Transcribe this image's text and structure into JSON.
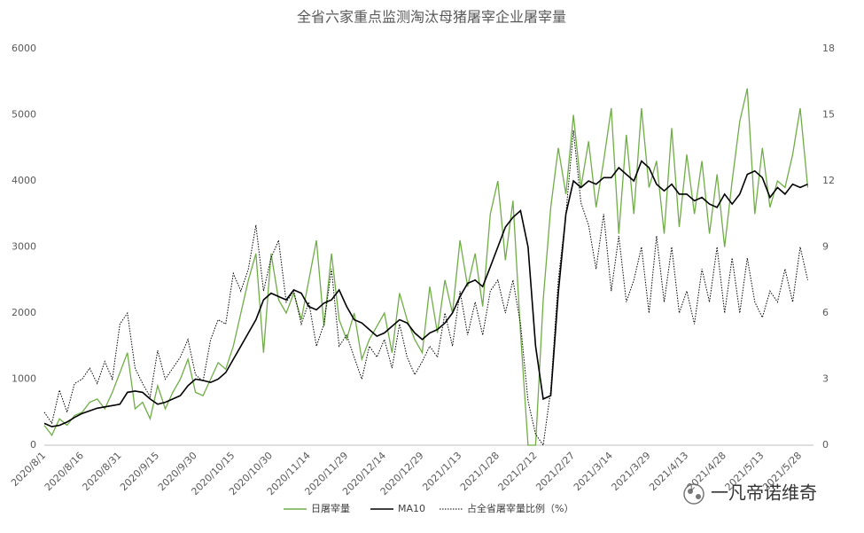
{
  "chart_data": {
    "type": "line",
    "title": "全省六家重点监测淘汰母猪屠宰企业屠宰量",
    "watermark": "一凡帝诺维奇",
    "categories": [
      "2020/8/1",
      null,
      null,
      null,
      null,
      "2020/8/16",
      null,
      null,
      null,
      null,
      "2020/8/31",
      null,
      null,
      null,
      null,
      "2020/9/15",
      null,
      null,
      null,
      null,
      "2020/9/30",
      null,
      null,
      null,
      null,
      "2020/10/15",
      null,
      null,
      null,
      null,
      "2020/10/30",
      null,
      null,
      null,
      null,
      "2020/11/14",
      null,
      null,
      null,
      null,
      "2020/11/29",
      null,
      null,
      null,
      null,
      "2020/12/14",
      null,
      null,
      null,
      null,
      "2020/12/29",
      null,
      null,
      null,
      null,
      "2021/1/13",
      null,
      null,
      null,
      null,
      "2021/1/28",
      null,
      null,
      null,
      null,
      "2021/2/12",
      null,
      null,
      null,
      null,
      "2021/2/27",
      null,
      null,
      null,
      null,
      "2021/3/14",
      null,
      null,
      null,
      null,
      "2021/3/29",
      null,
      null,
      null,
      null,
      "2021/4/13",
      null,
      null,
      null,
      null,
      "2021/4/28",
      null,
      null,
      null,
      null,
      "2021/5/13",
      null,
      null,
      null,
      null,
      "2021/5/28",
      null
    ],
    "series": [
      {
        "name": "日屠宰量",
        "color": "#70ad47",
        "line_style": "solid",
        "values": [
          300,
          150,
          400,
          300,
          450,
          500,
          650,
          700,
          550,
          800,
          1100,
          1400,
          550,
          650,
          400,
          900,
          550,
          800,
          1000,
          1300,
          800,
          750,
          1000,
          1250,
          1150,
          1500,
          2000,
          2500,
          2900,
          1400,
          2900,
          2200,
          2000,
          2300,
          1900,
          2500,
          3100,
          1800,
          2900,
          1900,
          1600,
          2000,
          1300,
          1600,
          1800,
          2000,
          1400,
          2300,
          1900,
          1600,
          1400,
          2400,
          1700,
          2500,
          2000,
          3100,
          2400,
          2900,
          2100,
          3500,
          4000,
          2800,
          3700,
          1700,
          0,
          0,
          2200,
          3600,
          4500,
          3800,
          5000,
          3900,
          4600,
          3600,
          4300,
          5100,
          3200,
          4700,
          3500,
          5100,
          3900,
          4300,
          3200,
          4800,
          3300,
          4400,
          3500,
          4300,
          3200,
          4100,
          3000,
          4000,
          4900,
          5400,
          3500,
          4500,
          3600,
          4000,
          3900,
          4400,
          5100,
          3900
        ]
      },
      {
        "name": "MA10",
        "color": "#000000",
        "line_style": "solid",
        "values": [
          330,
          280,
          300,
          350,
          420,
          480,
          520,
          560,
          580,
          600,
          620,
          800,
          820,
          800,
          700,
          620,
          650,
          700,
          750,
          900,
          1000,
          980,
          950,
          1000,
          1100,
          1300,
          1500,
          1700,
          1900,
          2200,
          2300,
          2250,
          2200,
          2350,
          2300,
          2100,
          2050,
          2150,
          2200,
          2350,
          2100,
          1900,
          1850,
          1750,
          1650,
          1700,
          1800,
          1900,
          1850,
          1700,
          1600,
          1700,
          1750,
          1850,
          2000,
          2250,
          2450,
          2500,
          2400,
          2700,
          3000,
          3300,
          3450,
          3550,
          3000,
          1500,
          700,
          750,
          2300,
          3500,
          4000,
          3900,
          4000,
          3950,
          4050,
          4050,
          4200,
          4100,
          4000,
          4300,
          4200,
          3950,
          3850,
          3950,
          3800,
          3800,
          3700,
          3750,
          3650,
          3600,
          3800,
          3650,
          3800,
          4100,
          4150,
          4050,
          3750,
          3900,
          3800,
          3950,
          3900,
          3950
        ]
      },
      {
        "name": "占全省屠宰量比例（%）",
        "color": "#000000",
        "line_style": "dotted",
        "axis": "y2",
        "values": [
          1.5,
          1.0,
          2.5,
          1.5,
          2.8,
          3.0,
          3.5,
          2.8,
          3.8,
          3.0,
          5.5,
          6.0,
          3.5,
          2.8,
          2.2,
          4.3,
          3.0,
          3.5,
          4.0,
          4.8,
          3.2,
          2.9,
          4.8,
          5.7,
          5.5,
          7.8,
          7.0,
          8.0,
          10.0,
          7.0,
          8.5,
          9.3,
          6.5,
          7.0,
          5.5,
          6.5,
          4.5,
          5.5,
          8.0,
          4.5,
          5.0,
          4.0,
          3.0,
          4.5,
          4.0,
          4.8,
          3.5,
          5.5,
          4.0,
          3.2,
          3.8,
          4.5,
          4.0,
          6.0,
          4.5,
          7.0,
          5.0,
          6.5,
          5.0,
          7.0,
          7.5,
          6.0,
          7.5,
          5.5,
          2.0,
          0.5,
          0,
          2.5,
          7.5,
          10.5,
          14.3,
          11.0,
          10.0,
          8.0,
          10.5,
          7.0,
          9.5,
          6.5,
          7.5,
          9.0,
          6.0,
          9.5,
          6.5,
          9.0,
          6.0,
          7.0,
          5.5,
          8.0,
          6.5,
          9.0,
          6.0,
          8.5,
          6.0,
          8.5,
          6.5,
          5.8,
          7.0,
          6.5,
          8.0,
          6.5,
          9.0,
          7.5
        ]
      }
    ],
    "ylim": [
      0,
      6000
    ],
    "yticks": [
      0,
      1000,
      2000,
      3000,
      4000,
      5000,
      6000
    ],
    "y2lim": [
      0,
      18
    ],
    "y2ticks": [
      0,
      3,
      6,
      9,
      12,
      15,
      18
    ],
    "grid": false
  }
}
